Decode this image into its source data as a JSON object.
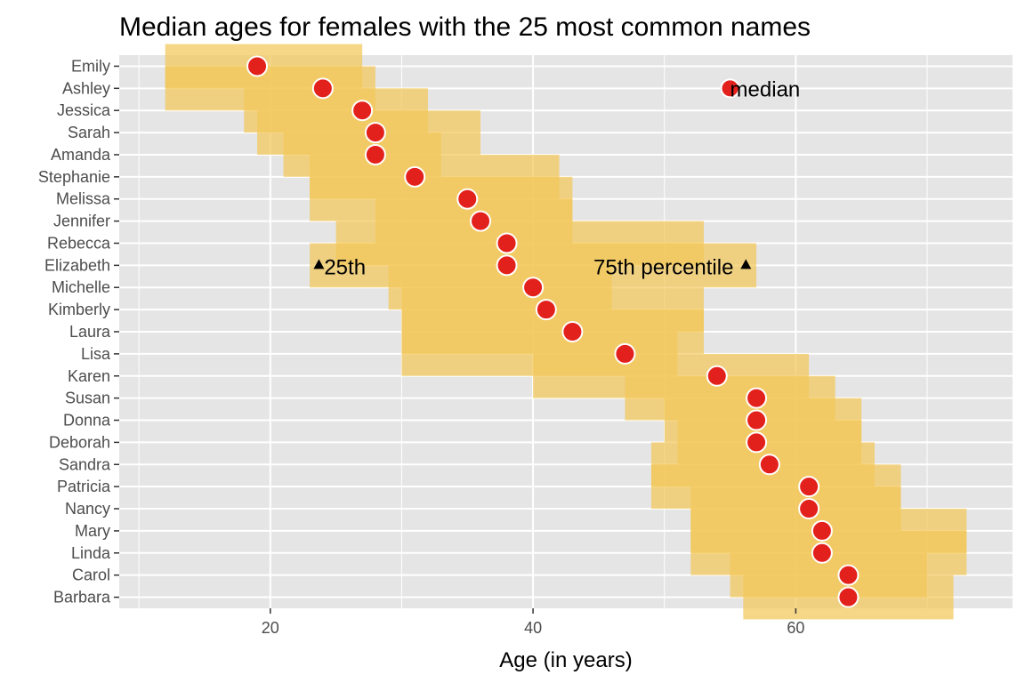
{
  "chart_data": {
    "type": "scatter",
    "title": "Median ages for females with the 25 most common names",
    "xlabel": "Age (in years)",
    "ylabel": "",
    "xlim": [
      8.5,
      76.5
    ],
    "x_ticks": [
      20,
      40,
      60
    ],
    "grid": true,
    "colors": {
      "panel": "#e5e5e5",
      "grid": "#ffffff",
      "band": "#f2c85a",
      "point": "#e3211c",
      "point_stroke": "#ffffff"
    },
    "names": [
      "Emily",
      "Ashley",
      "Jessica",
      "Sarah",
      "Amanda",
      "Stephanie",
      "Melissa",
      "Jennifer",
      "Rebecca",
      "Elizabeth",
      "Michelle",
      "Kimberly",
      "Laura",
      "Lisa",
      "Karen",
      "Susan",
      "Donna",
      "Deborah",
      "Sandra",
      "Patricia",
      "Nancy",
      "Mary",
      "Linda",
      "Carol",
      "Barbara"
    ],
    "median": [
      19,
      24,
      27,
      28,
      28,
      31,
      35,
      36,
      38,
      38,
      40,
      41,
      43,
      47,
      54,
      57,
      57,
      57,
      58,
      61,
      61,
      62,
      62,
      64,
      64
    ],
    "q1": [
      12,
      12,
      18,
      19,
      21,
      23,
      23,
      28,
      25,
      23,
      29,
      30,
      30,
      30,
      40,
      47,
      50,
      51,
      49,
      49,
      52,
      52,
      52,
      55,
      56
    ],
    "q3": [
      27,
      28,
      32,
      36,
      33,
      42,
      43,
      43,
      53,
      57,
      46,
      53,
      53,
      51,
      61,
      63,
      65,
      65,
      66,
      68,
      68,
      73,
      73,
      70,
      72
    ],
    "annotations": {
      "median": "median",
      "p25": "25th",
      "p75": "75th percentile"
    }
  }
}
